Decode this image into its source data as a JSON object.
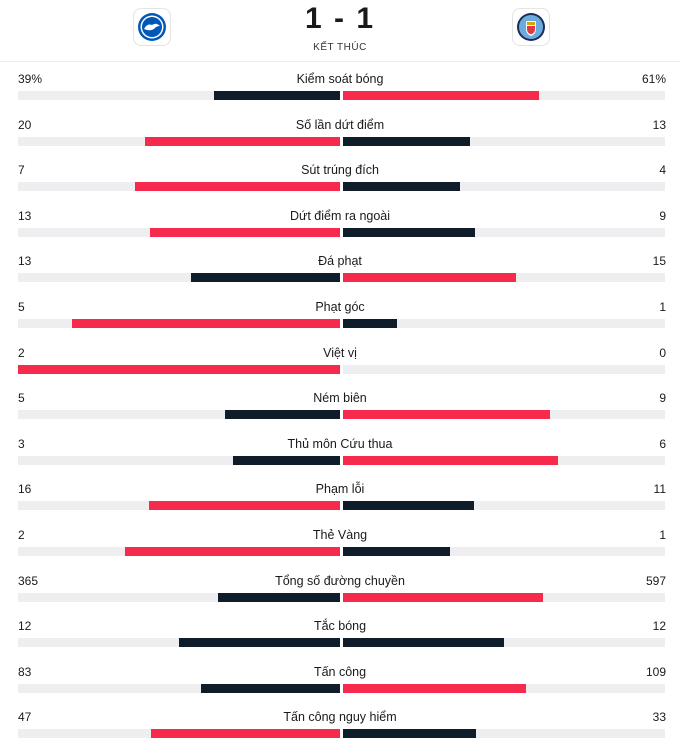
{
  "match": {
    "home_score": "1",
    "separator": "-",
    "away_score": "1",
    "status": "KẾT THÚC",
    "home_crest_icon": "brighton-crest-icon",
    "away_crest_icon": "man-city-crest-icon"
  },
  "colors": {
    "leader": "#f62a4c",
    "trailer": "#0f1d2b",
    "track": "#eeeef1"
  },
  "stats": [
    {
      "name": "Kiểm soát bóng",
      "home": "39%",
      "away": "61%",
      "home_value": 39,
      "away_value": 61
    },
    {
      "name": "Số lần dứt điểm",
      "home": "20",
      "away": "13",
      "home_value": 20,
      "away_value": 13
    },
    {
      "name": "Sút trúng đích",
      "home": "7",
      "away": "4",
      "home_value": 7,
      "away_value": 4
    },
    {
      "name": "Dứt điểm ra ngoài",
      "home": "13",
      "away": "9",
      "home_value": 13,
      "away_value": 9
    },
    {
      "name": "Đá phạt",
      "home": "13",
      "away": "15",
      "home_value": 13,
      "away_value": 15
    },
    {
      "name": "Phạt góc",
      "home": "5",
      "away": "1",
      "home_value": 5,
      "away_value": 1
    },
    {
      "name": "Việt vị",
      "home": "2",
      "away": "0",
      "home_value": 2,
      "away_value": 0
    },
    {
      "name": "Ném biên",
      "home": "5",
      "away": "9",
      "home_value": 5,
      "away_value": 9
    },
    {
      "name": "Thủ môn Cứu thua",
      "home": "3",
      "away": "6",
      "home_value": 3,
      "away_value": 6
    },
    {
      "name": "Phạm lỗi",
      "home": "16",
      "away": "11",
      "home_value": 16,
      "away_value": 11
    },
    {
      "name": "Thẻ Vàng",
      "home": "2",
      "away": "1",
      "home_value": 2,
      "away_value": 1
    },
    {
      "name": "Tổng số đường chuyền",
      "home": "365",
      "away": "597",
      "home_value": 365,
      "away_value": 597
    },
    {
      "name": "Tắc bóng",
      "home": "12",
      "away": "12",
      "home_value": 12,
      "away_value": 12
    },
    {
      "name": "Tấn công",
      "home": "83",
      "away": "109",
      "home_value": 83,
      "away_value": 109
    },
    {
      "name": "Tấn công nguy hiểm",
      "home": "47",
      "away": "33",
      "home_value": 47,
      "away_value": 33
    }
  ]
}
